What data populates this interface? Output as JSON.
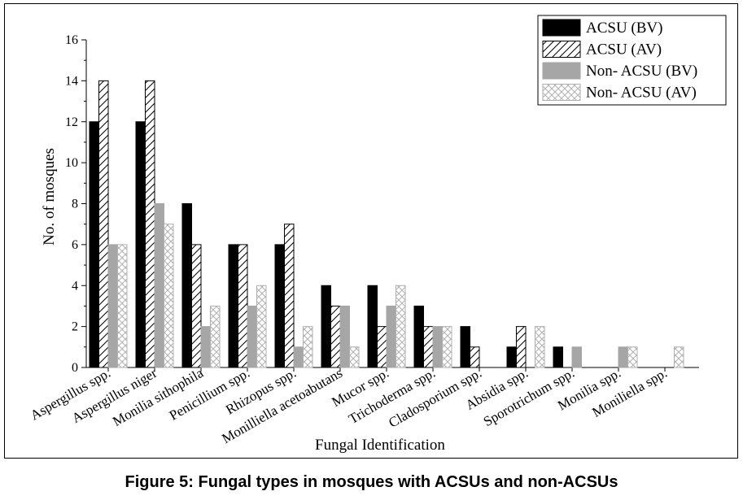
{
  "chart_data": {
    "type": "bar",
    "categories": [
      "Aspergillus spp.",
      "Aspergillus niger",
      "Monilia sithophila",
      "Penicillium spp.",
      "Rhizopus spp.",
      "Monilliella acetoabutans",
      "Mucor spp.",
      "Trichoderma spp.",
      "Cladosporium spp.",
      "Absidia spp.",
      "Sporotrichum spp.",
      "Monilia spp.",
      "Moniliella spp."
    ],
    "series": [
      {
        "name": "ACSU (BV)",
        "values": [
          12,
          12,
          8,
          6,
          6,
          4,
          4,
          3,
          2,
          1,
          1,
          0,
          0
        ],
        "style": "solid",
        "color": "#000000"
      },
      {
        "name": "ACSU (AV)",
        "values": [
          14,
          14,
          6,
          6,
          7,
          3,
          2,
          2,
          1,
          2,
          0,
          0,
          0
        ],
        "style": "diagonal-hatch",
        "color": "#000000"
      },
      {
        "name": "Non- ACSU (BV)",
        "values": [
          6,
          8,
          2,
          3,
          1,
          3,
          3,
          2,
          0,
          0,
          1,
          1,
          0
        ],
        "style": "solid",
        "color": "#a6a6a6"
      },
      {
        "name": "Non- ACSU (AV)",
        "values": [
          6,
          7,
          3,
          4,
          2,
          1,
          4,
          2,
          0,
          2,
          0,
          1,
          1
        ],
        "style": "cross-hatch",
        "color": "#b0b0b0"
      }
    ],
    "xlabel": "Fungal Identification",
    "ylabel": "No. of mosques",
    "ylim": [
      0,
      16
    ],
    "yticks": [
      "0",
      "2",
      "4",
      "6",
      "8",
      "10",
      "12",
      "14",
      "16"
    ],
    "legend_position": "top-right",
    "grid": false
  },
  "caption": "Figure 5: Fungal types in mosques with ACSUs and non-ACSUs"
}
